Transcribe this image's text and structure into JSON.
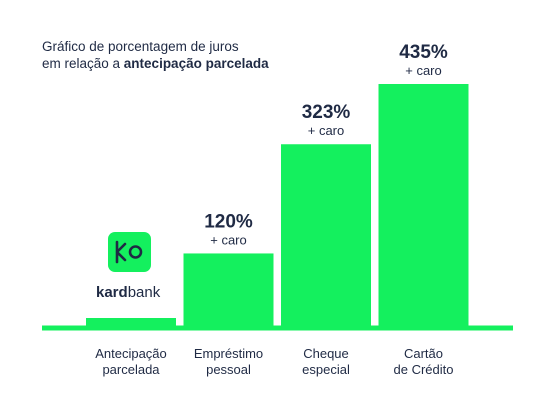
{
  "colors": {
    "bar": "#14f05e",
    "text": "#1f2a44",
    "logo_bg": "#14f05e"
  },
  "logo": {
    "icon": "kardbank-logo-icon",
    "word_bold": "kard",
    "word_regular": "bank"
  },
  "chart_data": {
    "type": "bar",
    "title": [
      "Gráfico de porcentagem de juros",
      "em relação a "
    ],
    "title_bold": "antecipação parcelada",
    "categories": [
      [
        "Antecipação",
        "parcelada"
      ],
      [
        "Empréstimo",
        "pessoal"
      ],
      [
        "Cheque",
        "especial"
      ],
      [
        "Cartão",
        "de Crédito"
      ]
    ],
    "values": [
      0,
      120,
      323,
      435
    ],
    "labels": [
      "",
      "120%",
      "323%",
      "435%"
    ],
    "sublabels": [
      "",
      "+ caro",
      "+ caro",
      "+ caro"
    ],
    "ylim": [
      0,
      435
    ],
    "grid": false,
    "legend": "none"
  }
}
